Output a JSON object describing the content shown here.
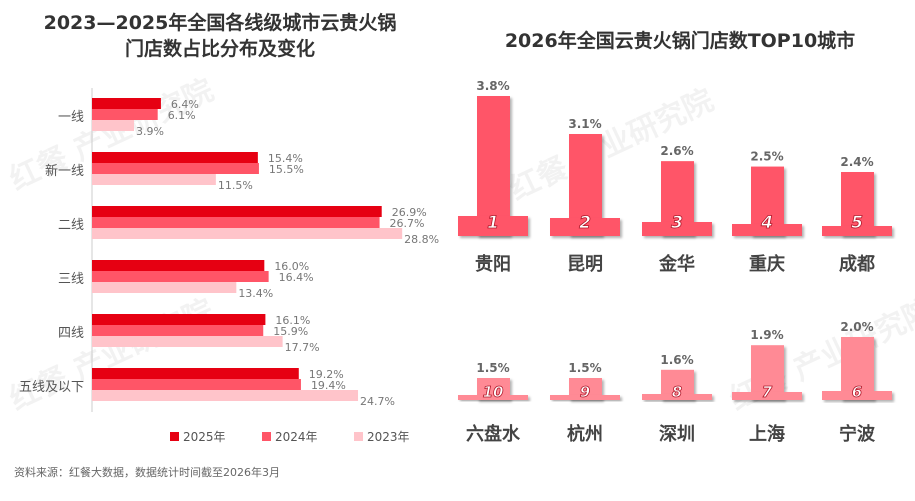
{
  "left_title_line1": "2023—2025年全国各线级城市云贵火锅",
  "left_title_line2": "门店数占比分布及变化",
  "right_title": "2026年全国云贵火锅门店数TOP10城市",
  "source": "资料来源：红餐大数据，数据统计时间截至2026年3月",
  "watermark": "红餐 产业研究院",
  "chart_data": [
    {
      "type": "bar",
      "orientation": "horizontal",
      "title": "2023—2025年全国各线级城市云贵火锅门店数占比分布及变化",
      "categories": [
        "一线",
        "新一线",
        "二线",
        "三线",
        "四线",
        "五线及以下"
      ],
      "series": [
        {
          "name": "2025年",
          "color": "#e60012",
          "values": [
            6.4,
            15.4,
            26.9,
            16.0,
            16.1,
            19.2
          ],
          "labels": [
            "6.4%",
            "15.4%",
            "26.9%",
            "16.0%",
            "16.1%",
            "19.2%"
          ]
        },
        {
          "name": "2024年",
          "color": "#ff5567",
          "values": [
            6.1,
            15.5,
            26.7,
            16.4,
            15.9,
            19.4
          ],
          "labels": [
            "6.1%",
            "15.5%",
            "26.7%",
            "16.4%",
            "15.9%",
            "19.4%"
          ]
        },
        {
          "name": "2023年",
          "color": "#ffc4ca",
          "values": [
            3.9,
            11.5,
            28.8,
            13.4,
            17.7,
            24.7
          ],
          "labels": [
            "3.9%",
            "11.5%",
            "28.8%",
            "13.4%",
            "17.7%",
            "24.7%"
          ]
        }
      ],
      "legend": "bottom"
    },
    {
      "type": "bar",
      "title": "2026年全国云贵火锅门店数TOP10城市",
      "rows": [
        {
          "color": "#ff5567",
          "items": [
            {
              "rank": "1",
              "city": "贵阳",
              "value": 3.8,
              "label": "3.8%"
            },
            {
              "rank": "2",
              "city": "昆明",
              "value": 3.1,
              "label": "3.1%"
            },
            {
              "rank": "3",
              "city": "金华",
              "value": 2.6,
              "label": "2.6%"
            },
            {
              "rank": "4",
              "city": "重庆",
              "value": 2.5,
              "label": "2.5%"
            },
            {
              "rank": "5",
              "city": "成都",
              "value": 2.4,
              "label": "2.4%"
            }
          ]
        },
        {
          "color": "#ff8a95",
          "items": [
            {
              "rank": "10",
              "city": "六盘水",
              "value": 1.5,
              "label": "1.5%"
            },
            {
              "rank": "9",
              "city": "杭州",
              "value": 1.5,
              "label": "1.5%"
            },
            {
              "rank": "8",
              "city": "深圳",
              "value": 1.6,
              "label": "1.6%"
            },
            {
              "rank": "7",
              "city": "上海",
              "value": 1.9,
              "label": "1.9%"
            },
            {
              "rank": "6",
              "city": "宁波",
              "value": 2.0,
              "label": "2.0%"
            }
          ]
        }
      ]
    }
  ]
}
